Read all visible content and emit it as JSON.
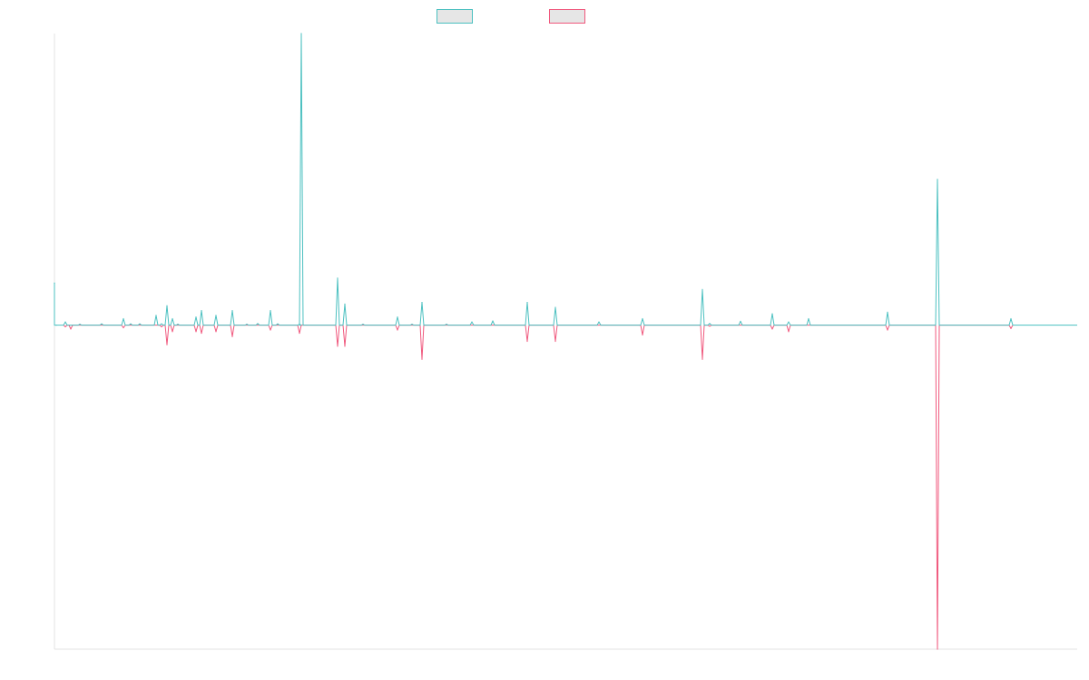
{
  "chart_data": {
    "type": "line",
    "title": "",
    "xlabel": "",
    "ylabel": "",
    "x_range": [
      0,
      1127
    ],
    "ylim": [
      -1.0,
      0.9
    ],
    "grid": false,
    "legend": {
      "placement": "top-center"
    },
    "baseline": 0,
    "series": [
      {
        "color": "#4bc0c0",
        "legend_fill": "#e6e6e6",
        "points": [
          [
            0,
            0.13
          ],
          [
            2,
            0
          ],
          [
            12,
            0.01
          ],
          [
            28,
            0.003
          ],
          [
            52,
            0.004
          ],
          [
            76,
            0.02
          ],
          [
            84,
            0.004
          ],
          [
            94,
            0.004
          ],
          [
            112,
            0.03
          ],
          [
            118,
            0.004
          ],
          [
            124,
            0.06
          ],
          [
            130,
            0.02
          ],
          [
            136,
            0.003
          ],
          [
            156,
            0.025
          ],
          [
            162,
            0.045
          ],
          [
            178,
            0.03
          ],
          [
            196,
            0.045
          ],
          [
            212,
            0.003
          ],
          [
            224,
            0.005
          ],
          [
            238,
            0.045
          ],
          [
            246,
            0.004
          ],
          [
            270,
            0.003
          ],
          [
            272,
            0.9
          ],
          [
            312,
            0.145
          ],
          [
            320,
            0.065
          ],
          [
            340,
            0.003
          ],
          [
            378,
            0.025
          ],
          [
            394,
            0.003
          ],
          [
            405,
            0.07
          ],
          [
            432,
            0.003
          ],
          [
            460,
            0.01
          ],
          [
            483,
            0.013
          ],
          [
            521,
            0.07
          ],
          [
            552,
            0.055
          ],
          [
            600,
            0.01
          ],
          [
            648,
            0.02
          ],
          [
            714,
            0.11
          ],
          [
            722,
            0.005
          ],
          [
            756,
            0.012
          ],
          [
            791,
            0.035
          ],
          [
            809,
            0.01
          ],
          [
            831,
            0.02
          ],
          [
            918,
            0.04
          ],
          [
            973,
            0.45
          ],
          [
            1054,
            0.02
          ]
        ]
      },
      {
        "color": "#f0587d",
        "legend_fill": "#e6e6e6",
        "points": [
          [
            12,
            -0.005
          ],
          [
            18,
            -0.012
          ],
          [
            76,
            -0.008
          ],
          [
            118,
            -0.005
          ],
          [
            124,
            -0.06
          ],
          [
            130,
            -0.02
          ],
          [
            156,
            -0.02
          ],
          [
            162,
            -0.025
          ],
          [
            178,
            -0.02
          ],
          [
            196,
            -0.035
          ],
          [
            238,
            -0.015
          ],
          [
            270,
            -0.025
          ],
          [
            312,
            -0.065
          ],
          [
            320,
            -0.065
          ],
          [
            378,
            -0.015
          ],
          [
            405,
            -0.105
          ],
          [
            521,
            -0.05
          ],
          [
            552,
            -0.05
          ],
          [
            648,
            -0.03
          ],
          [
            714,
            -0.105
          ],
          [
            722,
            -0.003
          ],
          [
            791,
            -0.012
          ],
          [
            809,
            -0.02
          ],
          [
            918,
            -0.015
          ],
          [
            973,
            -1.0
          ],
          [
            1054,
            -0.01
          ]
        ]
      }
    ]
  }
}
